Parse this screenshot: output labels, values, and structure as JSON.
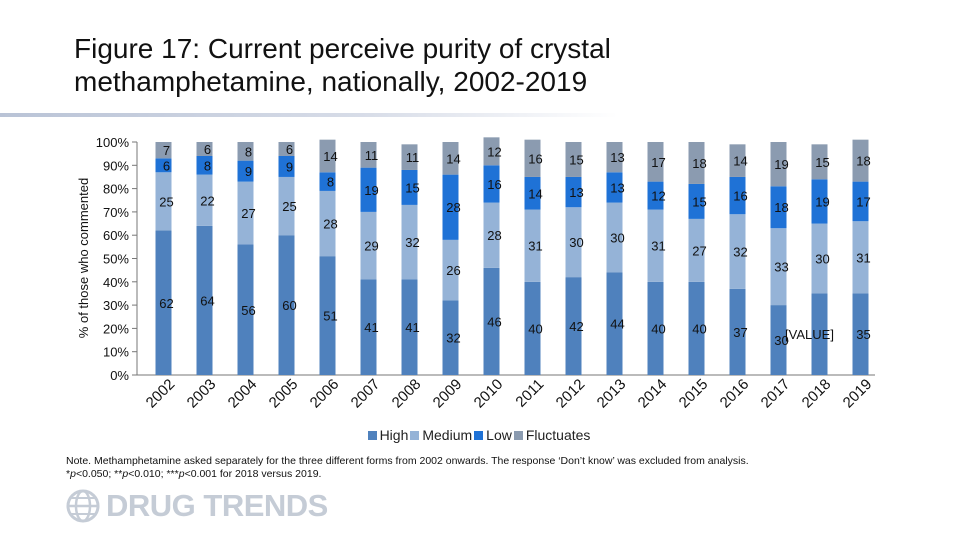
{
  "title": "Figure 17: Current perceive purity of crystal methamphetamine, nationally, 2002-2019",
  "note": {
    "line1": "Note. Methamphetamine asked separately for the three different forms from 2002 onwards. The response ‘Don’t know’ was excluded from analysis.",
    "line2_parts": [
      "*",
      "p",
      "<0.050; **",
      "p",
      "<0.010; ***",
      "p",
      "<0.001 for 2018 versus 2019."
    ]
  },
  "logo": {
    "text": "DRUG TRENDS",
    "icon": "globe-icon"
  },
  "colors": {
    "High": "#4f81bd",
    "Medium": "#95b3d7",
    "Low": "#1f72d6",
    "Fluctuates": "#8b9bb0"
  },
  "chart_data": {
    "type": "bar",
    "stacked": true,
    "ylabel": "% of those who commented",
    "ylim": [
      0,
      100
    ],
    "yticks": [
      "0%",
      "10%",
      "20%",
      "30%",
      "40%",
      "50%",
      "60%",
      "70%",
      "80%",
      "90%",
      "100%"
    ],
    "categories": [
      "2002",
      "2003",
      "2004",
      "2005",
      "2006",
      "2007",
      "2008",
      "2009",
      "2010",
      "2011",
      "2012",
      "2013",
      "2014",
      "2015",
      "2016",
      "2017",
      "2018",
      "2019"
    ],
    "legend_position": "bottom",
    "grid": false,
    "series": [
      {
        "name": "High",
        "values": [
          62,
          64,
          56,
          60,
          51,
          41,
          41,
          32,
          46,
          40,
          42,
          44,
          40,
          40,
          37,
          30,
          35,
          35
        ],
        "labels": [
          "62",
          "64",
          "56",
          "60",
          "51",
          "41",
          "41",
          "32",
          "46",
          "40",
          "42",
          "44",
          "40",
          "40",
          "37",
          "30",
          "[VALUE]",
          "35"
        ]
      },
      {
        "name": "Medium",
        "values": [
          25,
          22,
          27,
          25,
          28,
          29,
          32,
          26,
          28,
          31,
          30,
          30,
          31,
          27,
          32,
          33,
          30,
          31
        ],
        "labels": [
          "25",
          "22",
          "27",
          "25",
          "28",
          "29",
          "32",
          "26",
          "28",
          "31",
          "30",
          "30",
          "31",
          "27",
          "32",
          "33",
          "30",
          "31"
        ]
      },
      {
        "name": "Low",
        "values": [
          6,
          8,
          9,
          9,
          8,
          19,
          15,
          28,
          16,
          14,
          13,
          13,
          12,
          15,
          16,
          18,
          19,
          17
        ],
        "labels": [
          "6",
          "8",
          "9",
          "9",
          "8",
          "19",
          "15",
          "28",
          "16",
          "14",
          "13",
          "13",
          "12",
          "15",
          "16",
          "18",
          "19",
          "17"
        ]
      },
      {
        "name": "Fluctuates",
        "values": [
          7,
          6,
          8,
          6,
          14,
          11,
          11,
          14,
          12,
          16,
          15,
          13,
          17,
          18,
          14,
          19,
          15,
          18
        ],
        "labels": [
          "7",
          "6",
          "8",
          "6",
          "14",
          "11",
          "11",
          "14",
          "12",
          "16",
          "15",
          "13",
          "17",
          "18",
          "14",
          "19",
          "15",
          "18"
        ]
      }
    ]
  }
}
